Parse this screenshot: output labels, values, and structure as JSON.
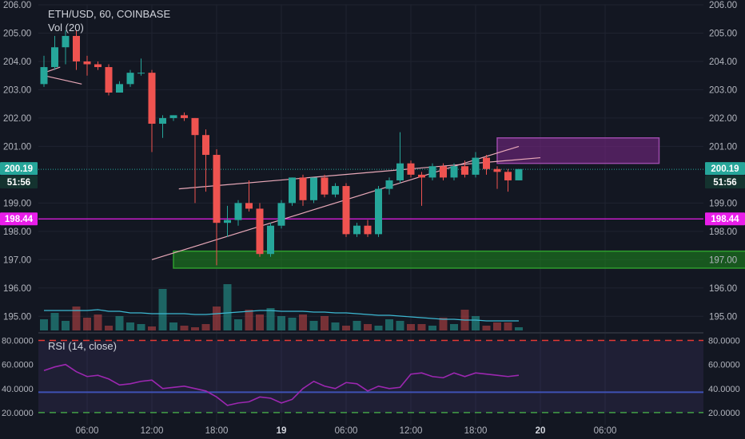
{
  "colors": {
    "background": "#131722",
    "grid": "#1f2330",
    "up": "#26a69a",
    "down": "#ef5350",
    "text": "#b2b5be",
    "magenta": "#e91ee9",
    "rsi_line": "#9c27b0",
    "vol_ma": "#3db9d3",
    "trend_line": "#e8a8b8"
  },
  "header": {
    "symbol": "ETH/USD, 60, COINBASE",
    "volume_label": "Vol (20)",
    "rsi_label": "RSI (14, close)"
  },
  "price_badges": {
    "last_price": "200.19",
    "countdown": "51:56",
    "horizontal_level": "198.44"
  },
  "chart_data": {
    "type": "candlestick",
    "symbol": "ETH/USD",
    "interval": "60",
    "exchange": "COINBASE",
    "price_axis": {
      "min": 194.5,
      "max": 206.0,
      "ticks": [
        "206.00",
        "205.00",
        "204.00",
        "203.00",
        "202.00",
        "201.00",
        "199.00",
        "198.00",
        "197.00",
        "196.00",
        "195.00"
      ],
      "tick_values": [
        206,
        205,
        204,
        203,
        202,
        201,
        199,
        198,
        197,
        196,
        195
      ]
    },
    "time_axis": {
      "labels": [
        "06:00",
        "12:00",
        "18:00",
        "19",
        "06:00",
        "12:00",
        "18:00",
        "20",
        "06:00"
      ],
      "bold_labels": [
        "19",
        "20"
      ],
      "start_hour_offset": 2,
      "label_hours": [
        6,
        12,
        18,
        24,
        30,
        36,
        42,
        48,
        54
      ]
    },
    "candles": [
      {
        "o": 203.2,
        "h": 204.2,
        "l": 203.1,
        "c": 203.8
      },
      {
        "o": 203.8,
        "h": 204.9,
        "l": 203.7,
        "c": 204.5
      },
      {
        "o": 204.5,
        "h": 205.1,
        "l": 203.9,
        "c": 204.9
      },
      {
        "o": 204.9,
        "h": 205.1,
        "l": 203.7,
        "c": 204.0
      },
      {
        "o": 204.0,
        "h": 204.2,
        "l": 203.5,
        "c": 203.9
      },
      {
        "o": 203.9,
        "h": 204.0,
        "l": 203.7,
        "c": 203.8
      },
      {
        "o": 203.8,
        "h": 203.9,
        "l": 202.8,
        "c": 202.9
      },
      {
        "o": 202.9,
        "h": 203.3,
        "l": 202.9,
        "c": 203.2
      },
      {
        "o": 203.2,
        "h": 203.7,
        "l": 203.1,
        "c": 203.6
      },
      {
        "o": 203.6,
        "h": 204.1,
        "l": 203.5,
        "c": 203.6
      },
      {
        "o": 203.6,
        "h": 203.7,
        "l": 200.8,
        "c": 201.8
      },
      {
        "o": 201.8,
        "h": 202.1,
        "l": 201.3,
        "c": 202.0
      },
      {
        "o": 202.0,
        "h": 202.1,
        "l": 201.9,
        "c": 202.1
      },
      {
        "o": 202.1,
        "h": 202.2,
        "l": 201.9,
        "c": 202.0
      },
      {
        "o": 202.0,
        "h": 202.0,
        "l": 199.0,
        "c": 201.4
      },
      {
        "o": 201.4,
        "h": 201.6,
        "l": 199.4,
        "c": 200.7
      },
      {
        "o": 200.7,
        "h": 200.9,
        "l": 196.8,
        "c": 198.3
      },
      {
        "o": 198.3,
        "h": 198.9,
        "l": 197.8,
        "c": 198.4
      },
      {
        "o": 198.4,
        "h": 199.1,
        "l": 198.2,
        "c": 199.0
      },
      {
        "o": 199.0,
        "h": 199.8,
        "l": 198.7,
        "c": 198.8
      },
      {
        "o": 198.8,
        "h": 199.0,
        "l": 197.1,
        "c": 197.2
      },
      {
        "o": 197.2,
        "h": 198.3,
        "l": 197.1,
        "c": 198.2
      },
      {
        "o": 198.2,
        "h": 199.1,
        "l": 198.1,
        "c": 199.0
      },
      {
        "o": 199.0,
        "h": 199.9,
        "l": 198.9,
        "c": 199.9
      },
      {
        "o": 199.9,
        "h": 200.0,
        "l": 198.9,
        "c": 199.1
      },
      {
        "o": 199.1,
        "h": 199.9,
        "l": 199.0,
        "c": 199.9
      },
      {
        "o": 199.9,
        "h": 200.0,
        "l": 199.2,
        "c": 199.3
      },
      {
        "o": 199.3,
        "h": 199.7,
        "l": 199.2,
        "c": 199.6
      },
      {
        "o": 199.6,
        "h": 199.7,
        "l": 197.8,
        "c": 197.9
      },
      {
        "o": 197.9,
        "h": 198.3,
        "l": 197.8,
        "c": 198.2
      },
      {
        "o": 198.2,
        "h": 198.4,
        "l": 197.8,
        "c": 197.9
      },
      {
        "o": 197.9,
        "h": 199.6,
        "l": 197.8,
        "c": 199.5
      },
      {
        "o": 199.5,
        "h": 199.9,
        "l": 199.3,
        "c": 199.8
      },
      {
        "o": 199.8,
        "h": 201.5,
        "l": 199.7,
        "c": 200.4
      },
      {
        "o": 200.4,
        "h": 200.5,
        "l": 199.9,
        "c": 200.0
      },
      {
        "o": 200.0,
        "h": 200.1,
        "l": 198.9,
        "c": 199.9
      },
      {
        "o": 199.9,
        "h": 200.4,
        "l": 199.8,
        "c": 200.3
      },
      {
        "o": 200.3,
        "h": 200.4,
        "l": 199.8,
        "c": 199.9
      },
      {
        "o": 199.9,
        "h": 200.4,
        "l": 199.8,
        "c": 200.3
      },
      {
        "o": 200.3,
        "h": 200.5,
        "l": 199.9,
        "c": 200.0
      },
      {
        "o": 200.0,
        "h": 200.8,
        "l": 199.9,
        "c": 200.6
      },
      {
        "o": 200.6,
        "h": 200.7,
        "l": 200.0,
        "c": 200.2
      },
      {
        "o": 200.2,
        "h": 200.3,
        "l": 199.5,
        "c": 200.1
      },
      {
        "o": 200.1,
        "h": 200.2,
        "l": 199.4,
        "c": 199.8
      },
      {
        "o": 199.8,
        "h": 200.2,
        "l": 199.8,
        "c": 200.2
      }
    ],
    "volume": [
      14,
      22,
      12,
      30,
      16,
      20,
      6,
      18,
      10,
      8,
      5,
      52,
      10,
      6,
      4,
      8,
      30,
      58,
      14,
      26,
      20,
      28,
      18,
      16,
      20,
      12,
      18,
      10,
      6,
      12,
      8,
      6,
      14,
      12,
      8,
      8,
      6,
      16,
      8,
      26,
      18,
      6,
      10,
      10,
      4
    ],
    "volume_ma": [
      25,
      25,
      25,
      25,
      25,
      26,
      24,
      24,
      22,
      22,
      21,
      21,
      21,
      21,
      20,
      20,
      21,
      22,
      23,
      24,
      25,
      25,
      24,
      24,
      24,
      23,
      23,
      22,
      22,
      21,
      20,
      19,
      19,
      18,
      17,
      16,
      15,
      14,
      14,
      13,
      13,
      12,
      12,
      12,
      12
    ],
    "horizontal_level": 198.44,
    "last_price": 200.19,
    "trend_lines": [
      {
        "from": [
          0,
          203.6
        ],
        "to": [
          1.5,
          203.8
        ]
      },
      {
        "from": [
          0,
          203.5
        ],
        "to": [
          3.5,
          203.2
        ]
      },
      {
        "from": [
          10,
          197.0
        ],
        "to": [
          44,
          201.0
        ]
      },
      {
        "from": [
          12.5,
          199.5
        ],
        "to": [
          46,
          200.6
        ]
      }
    ],
    "zones": [
      {
        "type": "support",
        "from_index": 12,
        "to_index": 66,
        "top": 197.3,
        "bottom": 196.7
      },
      {
        "type": "resistance",
        "from_index": 42,
        "to_index": 57,
        "top": 201.3,
        "bottom": 200.4
      }
    ],
    "rsi": {
      "label": "RSI (14, close)",
      "axis_ticks": [
        "80.0000",
        "60.0000",
        "40.0000",
        "20.0000"
      ],
      "tick_values": [
        80,
        60,
        40,
        20
      ],
      "band": [
        20,
        80
      ],
      "mid_line": 37,
      "values": [
        55,
        58,
        60,
        54,
        50,
        51,
        48,
        43,
        44,
        46,
        47,
        40,
        41,
        42,
        40,
        38,
        33,
        26,
        28,
        29,
        33,
        32,
        28,
        31,
        40,
        46,
        42,
        40,
        45,
        44,
        38,
        42,
        40,
        41,
        52,
        53,
        50,
        49,
        53,
        50,
        53,
        52,
        51,
        50,
        51
      ]
    }
  }
}
